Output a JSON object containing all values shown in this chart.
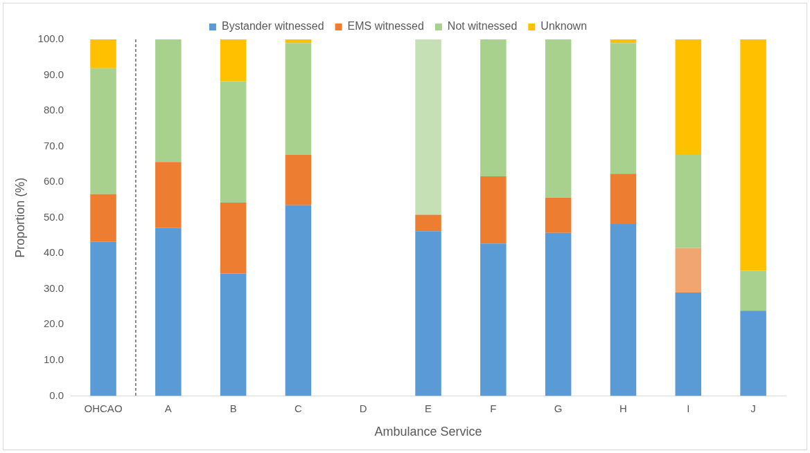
{
  "chart_data": {
    "type": "bar",
    "stacked": true,
    "xlabel": "Ambulance Service",
    "ylabel": "Proportion (%)",
    "legend": "top",
    "grid": false,
    "categories": [
      "OHCAO",
      "A",
      "B",
      "C",
      "D",
      "E",
      "F",
      "G",
      "H",
      "I",
      "J"
    ],
    "series": [
      {
        "name": "Bystander witnessed",
        "color": "#5b9bd5",
        "values": [
          43.2,
          47.1,
          34.3,
          53.5,
          null,
          46.2,
          42.7,
          45.7,
          48.2,
          29.0,
          23.9
        ]
      },
      {
        "name": "EMS witnessed",
        "color": "#ed7d31",
        "colors": [
          "#ed7d31",
          "#ed7d31",
          "#ed7d31",
          "#ed7d31",
          "#ed7d31",
          "#ed7d31",
          "#ed7d31",
          "#ed7d31",
          "#ed7d31",
          "#f1a571",
          "#ed7d31"
        ],
        "values": [
          13.4,
          18.5,
          19.9,
          14.1,
          null,
          4.6,
          18.9,
          9.9,
          14.1,
          12.5,
          0
        ]
      },
      {
        "name": "Not witnessed",
        "color": "#a9d18e",
        "colors": [
          "#a9d18e",
          "#a9d18e",
          "#a9d18e",
          "#a9d18e",
          "#a9d18e",
          "#c5e0b4",
          "#a9d18e",
          "#a9d18e",
          "#a9d18e",
          "#a9d18e",
          "#a9d18e"
        ],
        "values": [
          35.3,
          34.4,
          34.0,
          31.4,
          null,
          49.2,
          38.2,
          44.4,
          36.7,
          26.3,
          11.2
        ]
      },
      {
        "name": "Unknown",
        "color": "#ffc000",
        "values": [
          8.1,
          0,
          11.8,
          1.0,
          null,
          0,
          0.2,
          0,
          1.0,
          32.2,
          64.9
        ]
      }
    ],
    "ylim": [
      0,
      100
    ],
    "yticks": [
      {
        "value": 0,
        "label": "0.0"
      },
      {
        "value": 10,
        "label": "10.0"
      },
      {
        "value": 20,
        "label": "20.0"
      },
      {
        "value": 30,
        "label": "30.0"
      },
      {
        "value": 40,
        "label": "40.0"
      },
      {
        "value": 50,
        "label": "50.0"
      },
      {
        "value": 60,
        "label": "60.0"
      },
      {
        "value": 70,
        "label": "70.0"
      },
      {
        "value": 80,
        "label": "80.0"
      },
      {
        "value": 90,
        "label": "90.0"
      },
      {
        "value": 100,
        "label": "100.0"
      }
    ]
  }
}
